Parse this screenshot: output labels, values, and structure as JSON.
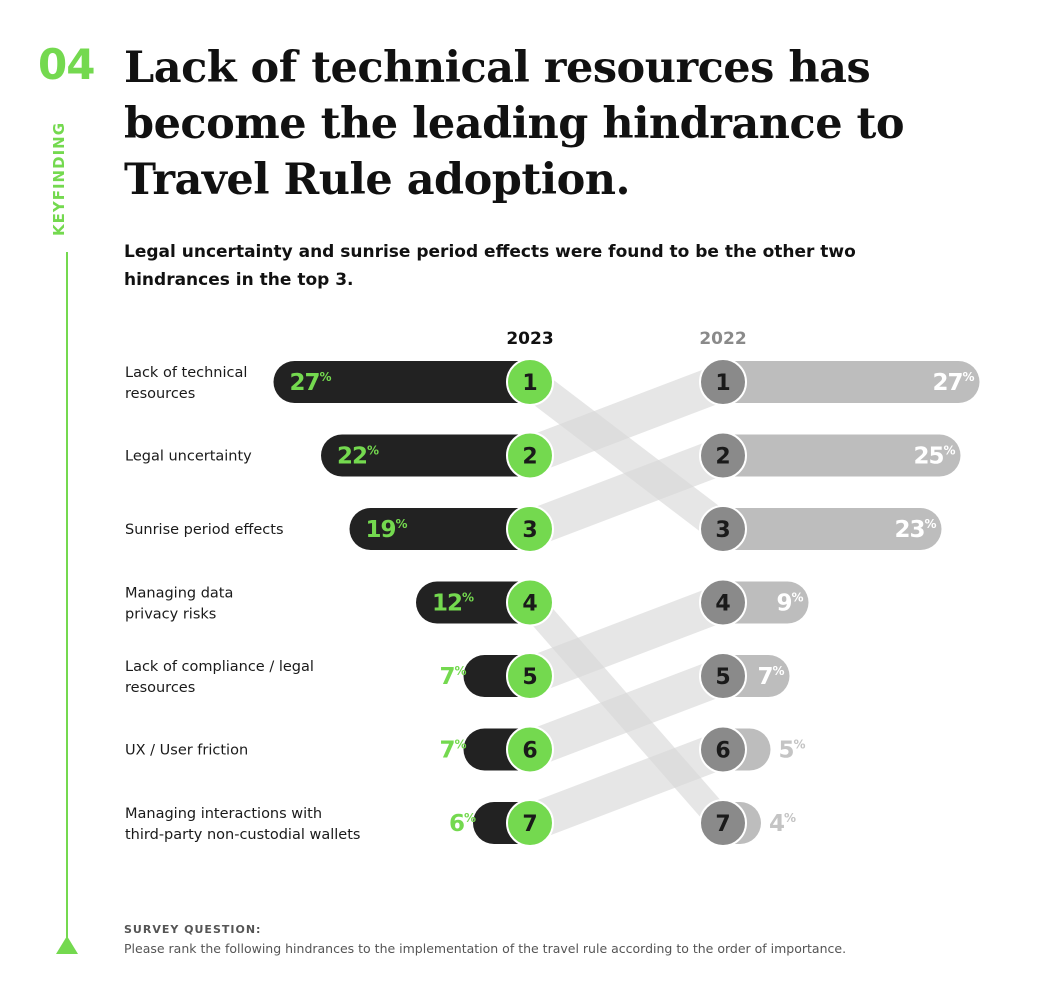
{
  "section": {
    "number": "04",
    "tag": "KEYFINDING"
  },
  "title": "Lack of technical resources has become the leading hindrance to Travel Rule adoption.",
  "subtitle": "Legal uncertainty and sunrise period effects were found to be the other two hindrances in the top 3.",
  "colors": {
    "accent_green": "#74d94f",
    "bar_2023": "#222222",
    "bar_2022": "#bdbdbd",
    "circle_2022": "#8a8a8a",
    "band": "#d9d9d9"
  },
  "chart_data": {
    "type": "bar",
    "title": "Hindrances to Travel Rule adoption (rank and share)",
    "unit": "%",
    "series": [
      {
        "name": "2023",
        "categories": [
          "Lack of technical resources",
          "Legal uncertainty",
          "Sunrise period effects",
          "Managing data privacy risks",
          "Lack of compliance / legal resources",
          "UX / User friction",
          "Managing interactions with third-party non-custodial wallets"
        ],
        "ranks": [
          1,
          2,
          3,
          4,
          5,
          6,
          7
        ],
        "values": [
          27,
          22,
          19,
          12,
          7,
          7,
          6
        ],
        "rank_in_2022": [
          3,
          1,
          2,
          7,
          4,
          5,
          6
        ]
      },
      {
        "name": "2022",
        "ranks": [
          1,
          2,
          3,
          4,
          5,
          6,
          7
        ],
        "values": [
          27,
          25,
          23,
          9,
          7,
          5,
          4
        ]
      }
    ],
    "labels_2023": [
      [
        "Lack of technical",
        "resources"
      ],
      [
        "Legal uncertainty"
      ],
      [
        "Sunrise period effects"
      ],
      [
        "Managing data",
        "privacy risks"
      ],
      [
        "Lack of compliance / legal",
        "resources"
      ],
      [
        "UX / User friction"
      ],
      [
        "Managing interactions with",
        "third-party non-custodial wallets"
      ]
    ],
    "percent_sign": "%"
  },
  "footer": {
    "label": "SURVEY QUESTION:",
    "text": "Please rank the following hindrances to the implementation of the travel rule according to the order of importance."
  }
}
